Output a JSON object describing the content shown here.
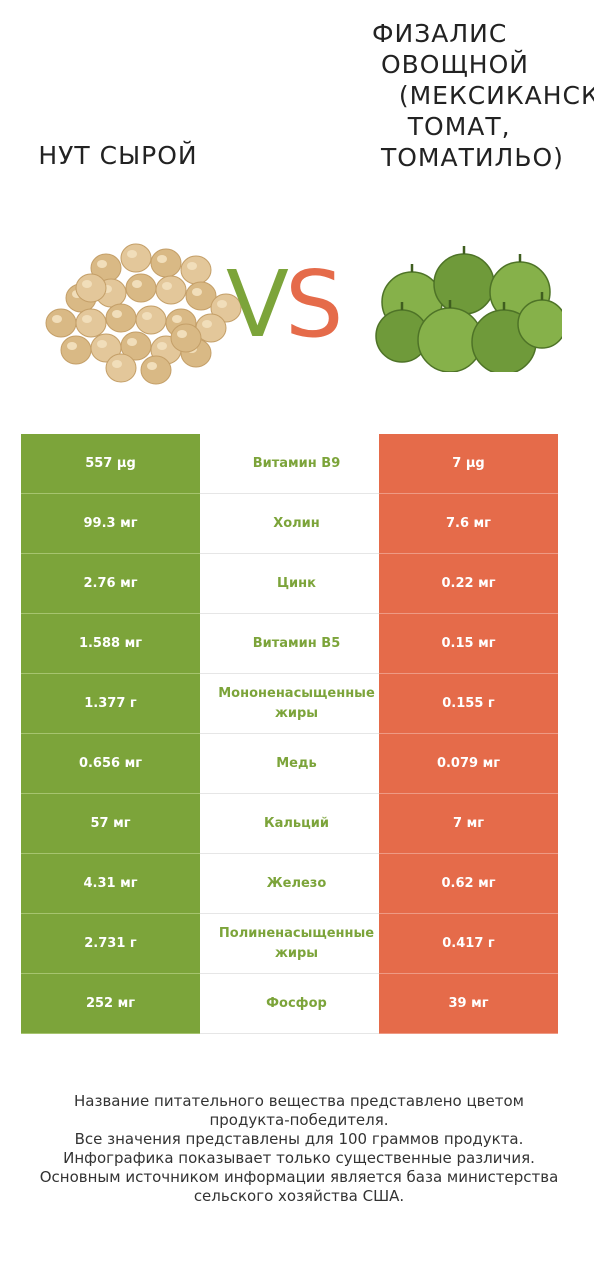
{
  "product_left": {
    "name": "НУТ СЫРОЙ"
  },
  "product_right": {
    "name": "ФИЗАЛИС\n ОВОЩНОЙ\n   (МЕКСИКАНСКИЙ\n    ТОМАТ,\n ТОМАТИЛЬО)"
  },
  "vs": {
    "v": "V",
    "s": "S"
  },
  "colors": {
    "left": "#7ca43a",
    "right": "#e56b4a"
  },
  "rows": [
    {
      "left": "557 µg",
      "nutrient": "Витамин B9",
      "right": "7 µg"
    },
    {
      "left": "99.3 мг",
      "nutrient": "Холин",
      "right": "7.6 мг"
    },
    {
      "left": "2.76 мг",
      "nutrient": "Цинк",
      "right": "0.22 мг"
    },
    {
      "left": "1.588 мг",
      "nutrient": "Витамин B5",
      "right": "0.15 мг"
    },
    {
      "left": "1.377 г",
      "nutrient": "Мононенасыщенные жиры",
      "right": "0.155 г"
    },
    {
      "left": "0.656 мг",
      "nutrient": "Медь",
      "right": "0.079 мг"
    },
    {
      "left": "57 мг",
      "nutrient": "Кальций",
      "right": "7 мг"
    },
    {
      "left": "4.31 мг",
      "nutrient": "Железо",
      "right": "0.62 мг"
    },
    {
      "left": "2.731 г",
      "nutrient": "Полиненасыщенные жиры",
      "right": "0.417 г"
    },
    {
      "left": "252 мг",
      "nutrient": "Фосфор",
      "right": "39 мг"
    }
  ],
  "footer": {
    "line1": "Название питательного вещества представлено цветом",
    "line2": "продукта-победителя.",
    "line3": "Все значения представлены для 100 граммов продукта.",
    "line4": "Инфографика показывает только существенные различия.",
    "line5": "Основным источником информации является база министерства",
    "line6": "сельского хозяйства США."
  }
}
